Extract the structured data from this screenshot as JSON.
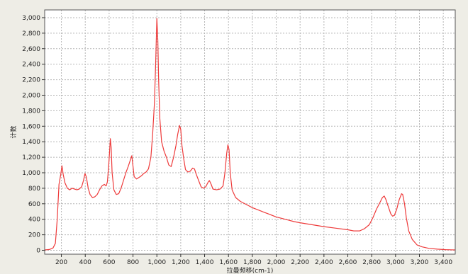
{
  "chart_data": {
    "type": "line",
    "title": "",
    "xlabel": "拉曼频移(cm-1)",
    "ylabel": "计数",
    "xlim": [
      60,
      3500
    ],
    "ylim": [
      -50,
      3100
    ],
    "grid": true,
    "colors": {
      "series": "#ee3b3b",
      "plot_bg": "#ffffff",
      "grid": "#b5b5b5",
      "frame": "#555555"
    },
    "x_ticks": [
      {
        "value": 200,
        "label": "200"
      },
      {
        "value": 400,
        "label": "400"
      },
      {
        "value": 600,
        "label": "600"
      },
      {
        "value": 800,
        "label": "800"
      },
      {
        "value": 1000,
        "label": "1,000"
      },
      {
        "value": 1200,
        "label": "1,200"
      },
      {
        "value": 1400,
        "label": "1,400"
      },
      {
        "value": 1600,
        "label": "1,600"
      },
      {
        "value": 1800,
        "label": "1,800"
      },
      {
        "value": 2000,
        "label": "2,000"
      },
      {
        "value": 2200,
        "label": "2,200"
      },
      {
        "value": 2400,
        "label": "2,400"
      },
      {
        "value": 2600,
        "label": "2,600"
      },
      {
        "value": 2800,
        "label": "2,800"
      },
      {
        "value": 3000,
        "label": "3,000"
      },
      {
        "value": 3200,
        "label": "3,200"
      },
      {
        "value": 3400,
        "label": "3,400"
      }
    ],
    "y_ticks": [
      {
        "value": 0,
        "label": "0"
      },
      {
        "value": 200,
        "label": "200"
      },
      {
        "value": 400,
        "label": "400"
      },
      {
        "value": 600,
        "label": "600"
      },
      {
        "value": 800,
        "label": "800"
      },
      {
        "value": 1000,
        "label": "1,000"
      },
      {
        "value": 1200,
        "label": "1,200"
      },
      {
        "value": 1400,
        "label": "1,400"
      },
      {
        "value": 1600,
        "label": "1,600"
      },
      {
        "value": 1800,
        "label": "1,800"
      },
      {
        "value": 2000,
        "label": "2,000"
      },
      {
        "value": 2200,
        "label": "2,200"
      },
      {
        "value": 2400,
        "label": "2,400"
      },
      {
        "value": 2600,
        "label": "2,600"
      },
      {
        "value": 2800,
        "label": "2,800"
      },
      {
        "value": 3000,
        "label": "3,000"
      }
    ],
    "series": [
      {
        "points": [
          [
            60,
            5
          ],
          [
            100,
            10
          ],
          [
            130,
            30
          ],
          [
            150,
            90
          ],
          [
            165,
            400
          ],
          [
            180,
            850
          ],
          [
            195,
            980
          ],
          [
            205,
            1090
          ],
          [
            215,
            980
          ],
          [
            230,
            870
          ],
          [
            250,
            800
          ],
          [
            270,
            780
          ],
          [
            290,
            800
          ],
          [
            310,
            790
          ],
          [
            330,
            780
          ],
          [
            350,
            790
          ],
          [
            370,
            820
          ],
          [
            385,
            900
          ],
          [
            398,
            990
          ],
          [
            410,
            940
          ],
          [
            425,
            800
          ],
          [
            440,
            720
          ],
          [
            460,
            680
          ],
          [
            480,
            690
          ],
          [
            500,
            720
          ],
          [
            520,
            780
          ],
          [
            540,
            830
          ],
          [
            560,
            850
          ],
          [
            575,
            830
          ],
          [
            585,
            880
          ],
          [
            595,
            1050
          ],
          [
            603,
            1250
          ],
          [
            610,
            1440
          ],
          [
            617,
            1320
          ],
          [
            625,
            1000
          ],
          [
            640,
            780
          ],
          [
            660,
            720
          ],
          [
            680,
            730
          ],
          [
            700,
            800
          ],
          [
            720,
            900
          ],
          [
            740,
            1000
          ],
          [
            760,
            1080
          ],
          [
            775,
            1150
          ],
          [
            790,
            1220
          ],
          [
            800,
            1080
          ],
          [
            810,
            950
          ],
          [
            830,
            920
          ],
          [
            850,
            940
          ],
          [
            870,
            960
          ],
          [
            890,
            990
          ],
          [
            910,
            1010
          ],
          [
            930,
            1050
          ],
          [
            950,
            1200
          ],
          [
            965,
            1500
          ],
          [
            980,
            1900
          ],
          [
            990,
            2400
          ],
          [
            1000,
            2990
          ],
          [
            1008,
            2700
          ],
          [
            1015,
            2200
          ],
          [
            1025,
            1700
          ],
          [
            1040,
            1400
          ],
          [
            1060,
            1280
          ],
          [
            1080,
            1200
          ],
          [
            1100,
            1100
          ],
          [
            1120,
            1080
          ],
          [
            1140,
            1200
          ],
          [
            1160,
            1350
          ],
          [
            1175,
            1500
          ],
          [
            1190,
            1610
          ],
          [
            1200,
            1560
          ],
          [
            1210,
            1350
          ],
          [
            1225,
            1180
          ],
          [
            1240,
            1040
          ],
          [
            1260,
            1010
          ],
          [
            1280,
            1020
          ],
          [
            1300,
            1060
          ],
          [
            1315,
            1050
          ],
          [
            1330,
            980
          ],
          [
            1350,
            900
          ],
          [
            1370,
            820
          ],
          [
            1390,
            800
          ],
          [
            1410,
            820
          ],
          [
            1430,
            880
          ],
          [
            1440,
            900
          ],
          [
            1455,
            850
          ],
          [
            1470,
            790
          ],
          [
            1500,
            780
          ],
          [
            1530,
            790
          ],
          [
            1555,
            830
          ],
          [
            1570,
            1000
          ],
          [
            1585,
            1250
          ],
          [
            1595,
            1360
          ],
          [
            1605,
            1300
          ],
          [
            1615,
            1000
          ],
          [
            1630,
            780
          ],
          [
            1660,
            680
          ],
          [
            1700,
            630
          ],
          [
            1750,
            590
          ],
          [
            1800,
            550
          ],
          [
            1850,
            520
          ],
          [
            1900,
            490
          ],
          [
            1950,
            460
          ],
          [
            2000,
            430
          ],
          [
            2050,
            410
          ],
          [
            2100,
            390
          ],
          [
            2150,
            370
          ],
          [
            2200,
            355
          ],
          [
            2300,
            330
          ],
          [
            2400,
            305
          ],
          [
            2500,
            285
          ],
          [
            2600,
            265
          ],
          [
            2650,
            250
          ],
          [
            2700,
            250
          ],
          [
            2740,
            280
          ],
          [
            2780,
            330
          ],
          [
            2810,
            420
          ],
          [
            2840,
            530
          ],
          [
            2870,
            620
          ],
          [
            2890,
            680
          ],
          [
            2905,
            700
          ],
          [
            2920,
            650
          ],
          [
            2940,
            560
          ],
          [
            2960,
            470
          ],
          [
            2975,
            440
          ],
          [
            2990,
            450
          ],
          [
            3010,
            530
          ],
          [
            3030,
            650
          ],
          [
            3050,
            730
          ],
          [
            3060,
            720
          ],
          [
            3075,
            600
          ],
          [
            3090,
            420
          ],
          [
            3110,
            250
          ],
          [
            3140,
            140
          ],
          [
            3180,
            70
          ],
          [
            3220,
            45
          ],
          [
            3280,
            25
          ],
          [
            3350,
            15
          ],
          [
            3420,
            8
          ],
          [
            3500,
            5
          ]
        ]
      }
    ]
  }
}
